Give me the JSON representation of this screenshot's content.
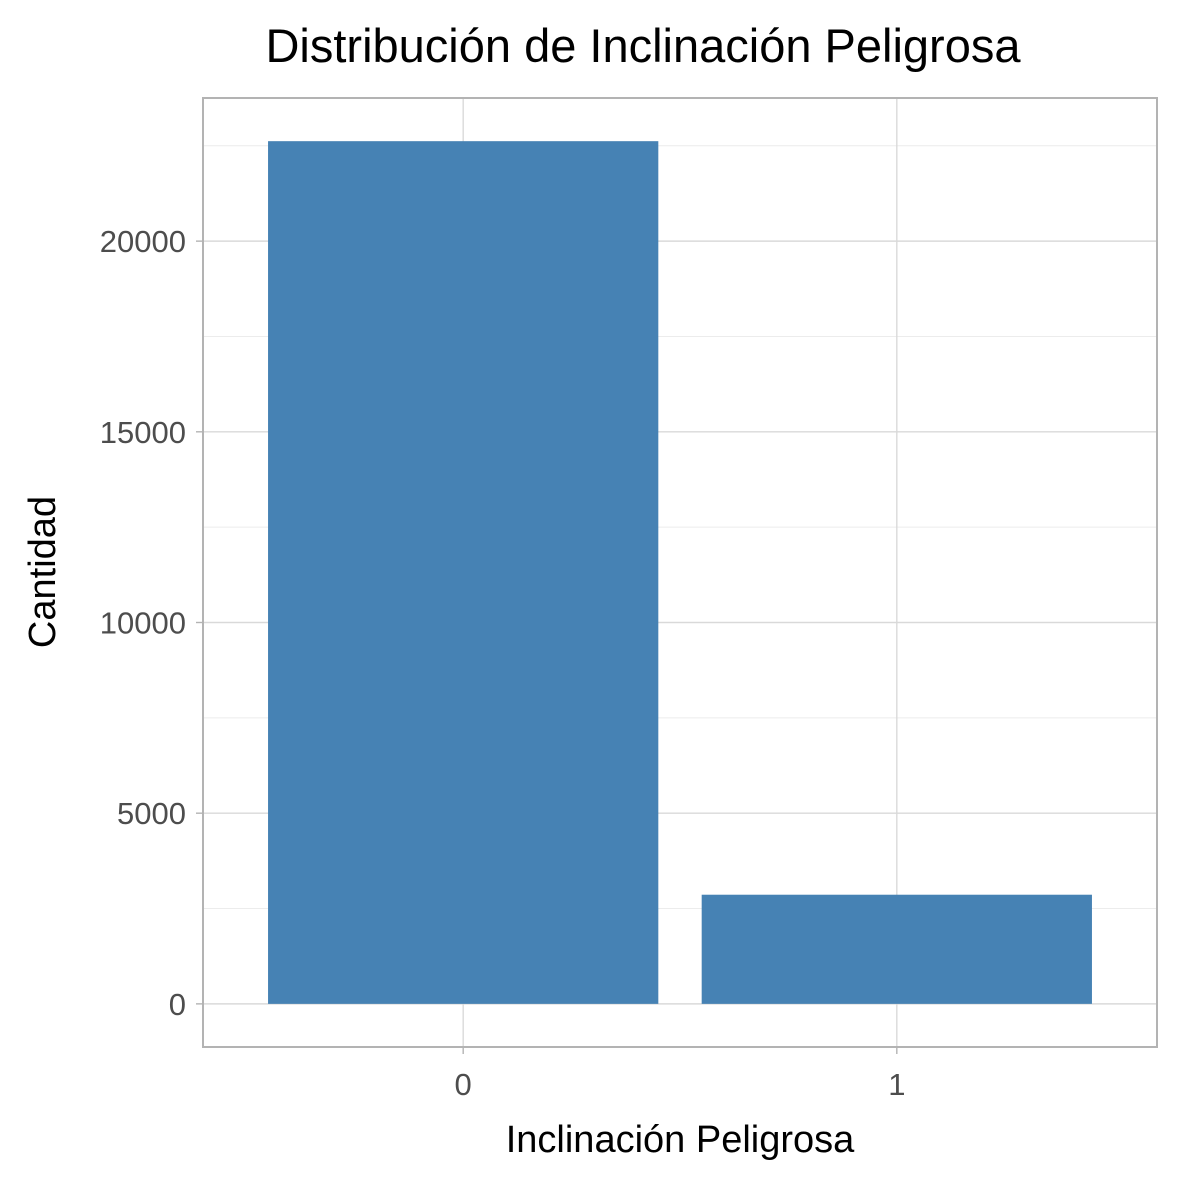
{
  "chart_data": {
    "type": "bar",
    "title": "Distribución de Inclinación Peligrosa",
    "xlabel": "Inclinación Peligrosa",
    "ylabel": "Cantidad",
    "categories": [
      "0",
      "1"
    ],
    "values": [
      22621,
      2862
    ],
    "ylim": [
      -1131,
      23753
    ],
    "yticks": [
      0,
      5000,
      10000,
      15000,
      20000
    ],
    "ytick_labels": [
      "0",
      "5000",
      "10000",
      "15000",
      "20000"
    ],
    "yminor": [
      2500,
      7500,
      12500,
      17500,
      22500
    ],
    "grid": true,
    "legend": "none",
    "colors": {
      "bar": "#4682B4",
      "grid_major": "#d9d9d9",
      "grid_minor": "#ececec",
      "panel_border": "#b3b3b3",
      "tick_text": "#4d4d4d",
      "text": "#000000"
    }
  }
}
